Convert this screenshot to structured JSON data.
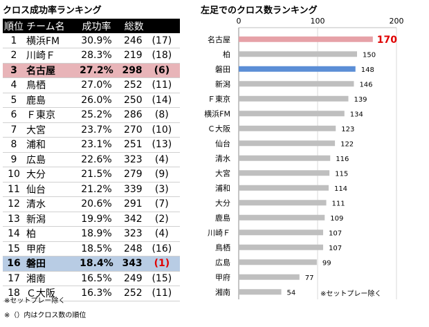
{
  "left": {
    "title": "クロス成功率ランキング",
    "headers": {
      "rank": "順位",
      "team": "チーム名",
      "rate": "成功率",
      "count": "総数"
    },
    "rows": [
      {
        "rank": "1",
        "team": "横浜FM",
        "rate": "30.9%",
        "count": "246",
        "cross_rank": "(17)"
      },
      {
        "rank": "2",
        "team": "川崎Ｆ",
        "rate": "28.3%",
        "count": "219",
        "cross_rank": "(18)"
      },
      {
        "rank": "3",
        "team": "名古屋",
        "rate": "27.2%",
        "count": "298",
        "cross_rank": "(6)"
      },
      {
        "rank": "4",
        "team": "鳥栖",
        "rate": "27.0%",
        "count": "252",
        "cross_rank": "(11)"
      },
      {
        "rank": "5",
        "team": "鹿島",
        "rate": "26.0%",
        "count": "250",
        "cross_rank": "(14)"
      },
      {
        "rank": "6",
        "team": "Ｆ東京",
        "rate": "25.2%",
        "count": "286",
        "cross_rank": "(8)"
      },
      {
        "rank": "7",
        "team": "大宮",
        "rate": "23.7%",
        "count": "270",
        "cross_rank": "(10)"
      },
      {
        "rank": "8",
        "team": "浦和",
        "rate": "23.1%",
        "count": "251",
        "cross_rank": "(13)"
      },
      {
        "rank": "9",
        "team": "広島",
        "rate": "22.6%",
        "count": "323",
        "cross_rank": "(4)"
      },
      {
        "rank": "10",
        "team": "大分",
        "rate": "21.5%",
        "count": "279",
        "cross_rank": "(9)"
      },
      {
        "rank": "11",
        "team": "仙台",
        "rate": "21.2%",
        "count": "339",
        "cross_rank": "(3)"
      },
      {
        "rank": "12",
        "team": "清水",
        "rate": "20.6%",
        "count": "291",
        "cross_rank": "(7)"
      },
      {
        "rank": "13",
        "team": "新潟",
        "rate": "19.9%",
        "count": "342",
        "cross_rank": "(2)"
      },
      {
        "rank": "14",
        "team": "柏",
        "rate": "18.9%",
        "count": "323",
        "cross_rank": "(4)"
      },
      {
        "rank": "15",
        "team": "甲府",
        "rate": "18.5%",
        "count": "248",
        "cross_rank": "(16)"
      },
      {
        "rank": "16",
        "team": "磐田",
        "rate": "18.4%",
        "count": "343",
        "cross_rank": "(1)"
      },
      {
        "rank": "17",
        "team": "湘南",
        "rate": "16.5%",
        "count": "249",
        "cross_rank": "(15)"
      },
      {
        "rank": "18",
        "team": "Ｃ大阪",
        "rate": "16.3%",
        "count": "252",
        "cross_rank": "(11)"
      }
    ],
    "note1": "※セットプレー除く",
    "note2": "※（）内はクロス数の順位"
  },
  "chart_data": {
    "type": "bar",
    "orientation": "horizontal",
    "title": "左足でのクロス数ランキング",
    "categories": [
      "名古屋",
      "柏",
      "磐田",
      "新潟",
      "Ｆ東京",
      "横浜FM",
      "Ｃ大阪",
      "仙台",
      "清水",
      "大宮",
      "浦和",
      "大分",
      "鹿島",
      "川崎Ｆ",
      "鳥栖",
      "広島",
      "甲府",
      "湘南"
    ],
    "values": [
      170,
      150,
      148,
      146,
      139,
      134,
      123,
      122,
      116,
      115,
      114,
      111,
      109,
      107,
      107,
      99,
      77,
      54
    ],
    "xlim": [
      0,
      200
    ],
    "ticks": [
      0,
      100,
      200
    ],
    "grid": true,
    "note": "※セットプレー除く",
    "colors": {
      "default": "#bfbfbf",
      "highlight_nagoya": "#e6a1a7",
      "highlight_iwata": "#5b8ed6",
      "top_label": "#e00000"
    }
  }
}
